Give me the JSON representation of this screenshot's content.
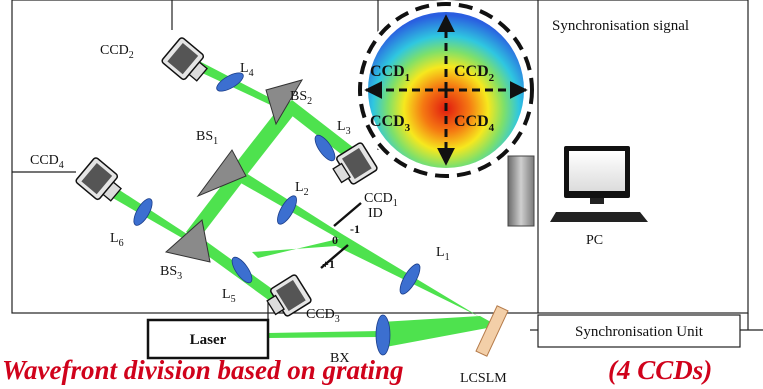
{
  "labels": {
    "ccd1": "CCD",
    "ccd1_sub": "1",
    "ccd2": "CCD",
    "ccd2_sub": "2",
    "ccd3": "CCD",
    "ccd3_sub": "3",
    "ccd4": "CCD",
    "ccd4_sub": "4",
    "bs1": "BS",
    "bs1_sub": "1",
    "bs2": "BS",
    "bs2_sub": "2",
    "bs3": "BS",
    "bs3_sub": "3",
    "l1": "L",
    "l1_sub": "1",
    "l2": "L",
    "l2_sub": "2",
    "l3": "L",
    "l3_sub": "3",
    "l4": "L",
    "l4_sub": "4",
    "l5": "L",
    "l5_sub": "5",
    "l6": "L",
    "l6_sub": "6",
    "id": "ID",
    "order_zero": "0",
    "order_minus": "-1",
    "order_plus": "+1",
    "pc": "PC",
    "laser": "Laser",
    "bx": "BX",
    "lcslm": "LCSLM",
    "sync_signal": "Synchronisation signal",
    "sync_unit": "Synchronisation Unit"
  },
  "inset": {
    "q1": "CCD",
    "q1_sub": "1",
    "q2": "CCD",
    "q2_sub": "2",
    "q3": "CCD",
    "q3_sub": "3",
    "q4": "CCD",
    "q4_sub": "4"
  },
  "caption": {
    "left": "Wavefront division based on grating",
    "right": "(4 CCDs)"
  },
  "colors": {
    "beam": "#4ee24e",
    "lens": "#3c6fd0",
    "bs": "#8a8a8a",
    "caption": "#d0021b",
    "slm": "#f3cfa8"
  }
}
